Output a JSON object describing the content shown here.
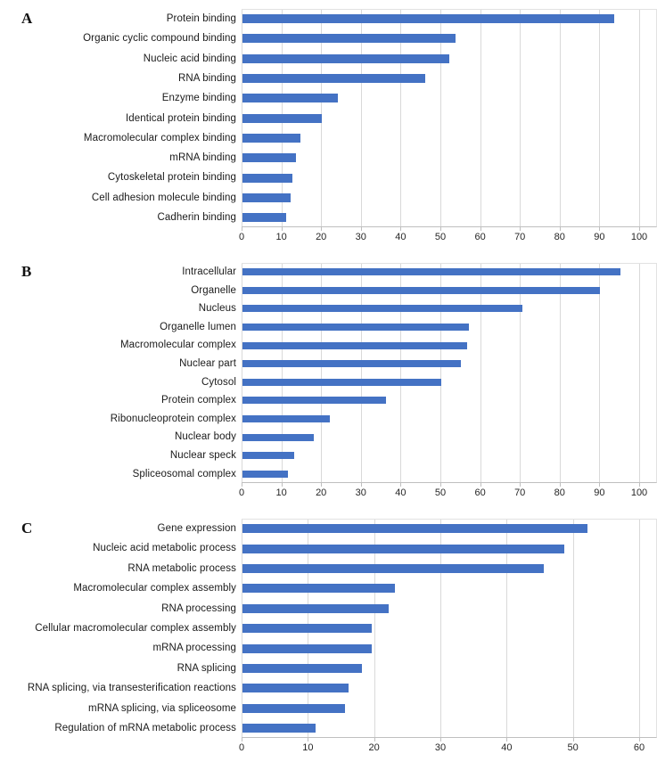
{
  "colors": {
    "bar": "#4472C4",
    "gridline": "#d9d9d9",
    "axis_line": "#bfbfbf",
    "label_text": "#1a1a1a"
  },
  "chart_data": [
    {
      "type": "bar",
      "orientation": "horizontal",
      "panel_label": "A",
      "title": "",
      "xlabel": "",
      "ylabel": "",
      "legend": null,
      "grid": true,
      "xlim": [
        0,
        100
      ],
      "xticks": [
        0,
        10,
        20,
        30,
        40,
        50,
        60,
        70,
        80,
        90,
        100
      ],
      "categories": [
        "Protein binding",
        "Organic cyclic compound binding",
        "Nucleic acid binding",
        "RNA binding",
        "Enzyme binding",
        "Identical protein binding",
        "Macromolecular complex binding",
        "mRNA binding",
        "Cytoskeletal protein binding",
        "Cell adhesion molecule binding",
        "Cadherin binding"
      ],
      "values": [
        93.5,
        53.5,
        52,
        46,
        24,
        20,
        14.5,
        13.5,
        12.5,
        12,
        11
      ]
    },
    {
      "type": "bar",
      "orientation": "horizontal",
      "panel_label": "B",
      "title": "",
      "xlabel": "",
      "ylabel": "",
      "legend": null,
      "grid": true,
      "xlim": [
        0,
        100
      ],
      "xticks": [
        0,
        10,
        20,
        30,
        40,
        50,
        60,
        70,
        80,
        90,
        100
      ],
      "categories": [
        "Intracellular",
        "Organelle",
        "Nucleus",
        "Organelle lumen",
        "Macromolecular complex",
        "Nuclear part",
        "Cytosol",
        "Protein complex",
        "Ribonucleoprotein complex",
        "Nuclear body",
        "Nuclear speck",
        "Spliceosomal complex"
      ],
      "values": [
        95,
        90,
        70.5,
        57,
        56.5,
        55,
        50,
        36,
        22,
        18,
        13,
        11.5
      ]
    },
    {
      "type": "bar",
      "orientation": "horizontal",
      "panel_label": "C",
      "title": "",
      "xlabel": "",
      "ylabel": "",
      "legend": null,
      "grid": true,
      "xlim": [
        0,
        60
      ],
      "xticks": [
        0,
        10,
        20,
        30,
        40,
        50,
        60
      ],
      "categories": [
        "Gene expression",
        "Nucleic acid metabolic process",
        "RNA metabolic process",
        "Macromolecular complex assembly",
        "RNA processing",
        "Cellular macromolecular complex assembly",
        "mRNA processing",
        "RNA splicing",
        "RNA splicing, via transesterification reactions",
        "mRNA splicing, via spliceosome",
        "Regulation of mRNA metabolic process"
      ],
      "values": [
        52,
        48.5,
        45.5,
        23,
        22,
        19.5,
        19.5,
        18,
        16,
        15.5,
        11
      ]
    }
  ]
}
